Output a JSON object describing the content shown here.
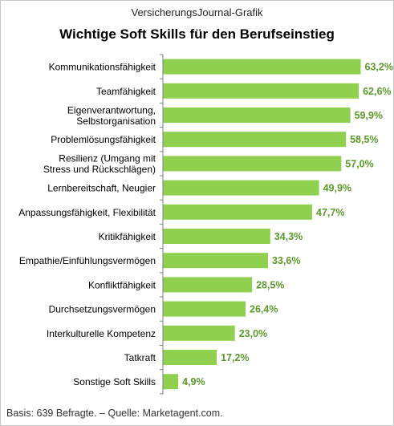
{
  "header": {
    "publisher": "VersicherungsJournal-Grafik"
  },
  "footer": {
    "basis": "Basis: 639 Befragte.",
    "separator": " – ",
    "source_label": "Quelle:",
    "source_name": "Marketagent.com."
  },
  "colors": {
    "bar": "#8fd14f",
    "value_label": "#5b9a2a",
    "axis": "#7f7f7f"
  },
  "chart_data": {
    "type": "bar",
    "orientation": "horizontal",
    "title": "Wichtige Soft Skills für den Berufseinstieg",
    "xlabel": "",
    "ylabel": "",
    "unit": "%",
    "xlim": [
      0,
      70
    ],
    "grid": false,
    "legend": "none",
    "categories": [
      [
        "Kommunikationsfähigkeit"
      ],
      [
        "Teamfähigkeit"
      ],
      [
        "Eigenverantwortung,",
        "Selbstorganisation"
      ],
      [
        "Problemlösungsfähigkeit"
      ],
      [
        "Resilienz (Umgang mit",
        "Stress und Rückschlägen)"
      ],
      [
        "Lernbereitschaft, Neugier"
      ],
      [
        "Anpassungsfähigkeit, Flexibilität"
      ],
      [
        "Kritikfähigkeit"
      ],
      [
        "Empathie/Einfühlungsvermögen"
      ],
      [
        "Konfliktfähigkeit"
      ],
      [
        "Durchsetzungsvermögen"
      ],
      [
        "Interkulturelle Kompetenz"
      ],
      [
        "Tatkraft"
      ],
      [
        "Sonstige Soft Skills"
      ]
    ],
    "values": [
      63.2,
      62.6,
      59.9,
      58.5,
      57.0,
      49.9,
      47.7,
      34.3,
      33.6,
      28.5,
      26.4,
      23.0,
      17.2,
      4.9
    ],
    "value_labels": [
      "63,2%",
      "62,6%",
      "59,9%",
      "58,5%",
      "57,0%",
      "49,9%",
      "47,7%",
      "34,3%",
      "33,6%",
      "28,5%",
      "26,4%",
      "23,0%",
      "17,2%",
      "4,9%"
    ]
  }
}
